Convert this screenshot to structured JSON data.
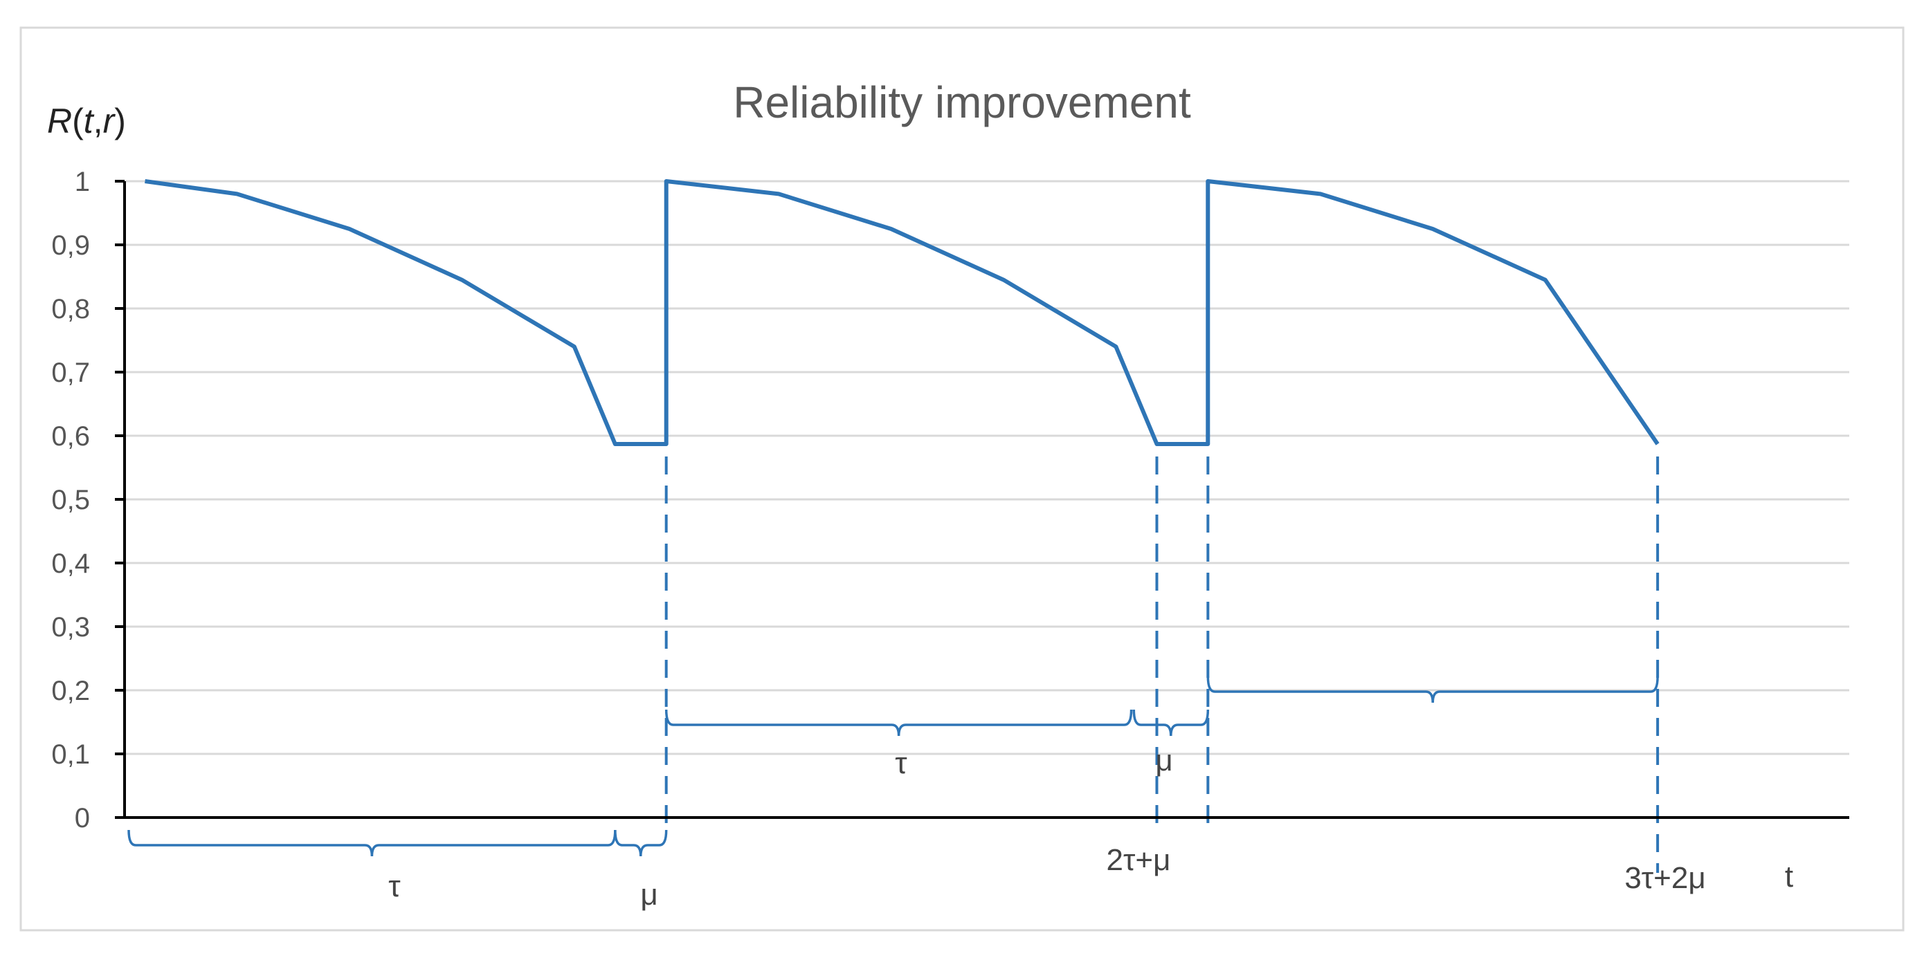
{
  "colors": {
    "series": "#2e75b6",
    "grid": "#d9d9d9",
    "axis": "#000000"
  },
  "chart_data": {
    "type": "line",
    "title": "Reliability improvement",
    "ylabel_parts": [
      "R",
      "(",
      "t",
      ",",
      "r",
      ")"
    ],
    "xlabel": "t",
    "ylim": [
      0,
      1
    ],
    "xlim": [
      0,
      3.375
    ],
    "grid": true,
    "yticks": [
      0,
      0.1,
      0.2,
      0.3,
      0.4,
      0.5,
      0.6,
      0.7,
      0.8,
      0.9,
      1
    ],
    "ytick_labels": [
      "0",
      "0,1",
      "0,2",
      "0,3",
      "0,4",
      "0,5",
      "0,6",
      "0,7",
      "0,8",
      "0,9",
      "1"
    ],
    "series": [
      {
        "x": [
          0.04,
          0.22,
          0.44,
          0.66,
          0.88,
          0.96,
          1.06,
          1.06,
          1.28,
          1.5,
          1.72,
          1.94,
          2.02,
          2.12,
          2.12,
          2.34,
          2.56,
          2.78,
          3.0
        ],
        "y": [
          1.0,
          0.98,
          0.925,
          0.845,
          0.74,
          0.587,
          0.587,
          1.0,
          0.98,
          0.925,
          0.845,
          0.74,
          0.587,
          0.587,
          1.0,
          0.98,
          0.925,
          0.845,
          0.587
        ]
      }
    ],
    "reference_lines": [
      1.06,
      2.02,
      2.12,
      3.0
    ],
    "annotations": {
      "tau_1": "τ",
      "mu_1": "μ",
      "tau_2": "τ",
      "mu_2": "μ",
      "t_2tau_mu": "2τ+μ",
      "t_3tau_2mu": "3τ+2μ"
    }
  }
}
